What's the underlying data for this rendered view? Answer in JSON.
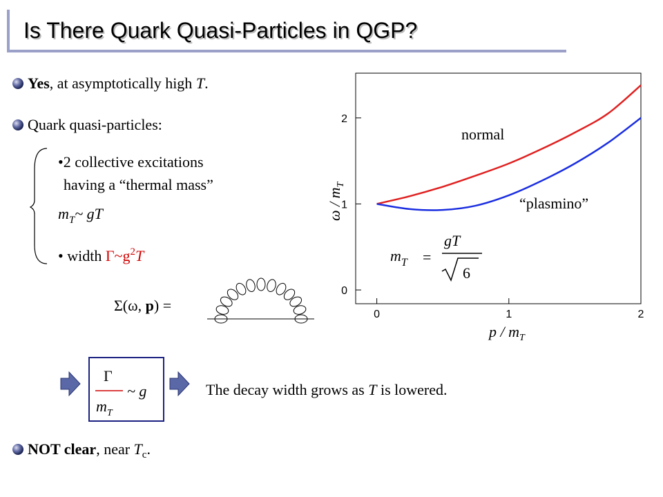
{
  "header": {
    "title": "Is There Quark Quasi-Particles in QGP?"
  },
  "bullets": [
    {
      "bold": "Yes",
      "text": ", at asymptotically high ",
      "italic": "T",
      "end": "."
    },
    {
      "text": "Quark quasi-particles:"
    },
    {
      "bold": "NOT clear",
      "text": ", near ",
      "italic": "T",
      "sub": "c",
      "end": "."
    }
  ],
  "sub_items": [
    {
      "line1": "•2 collective excitations",
      "line2": "having a “thermal mass”",
      "m": "m",
      "sub": "T",
      "rest": "~ gT"
    },
    {
      "text": "• width ",
      "gamma": "Γ~g",
      "sup": "2",
      "end": "T"
    }
  ],
  "self_energy": {
    "left": "Σ(ω, ",
    "bold": "p",
    "right": ") ="
  },
  "ratio": {
    "num": "Γ",
    "den": "m",
    "den_sub": "T",
    "rel": "~ g"
  },
  "conclusion": {
    "text": "The decay width grows as ",
    "italic": "T",
    "end": " is lowered."
  },
  "chart_data": {
    "type": "line",
    "xlabel": "p / m",
    "xlabel_sub": "T",
    "ylabel": "ω / m",
    "ylabel_sub": "T",
    "formula": {
      "lhs": "m",
      "lhs_sub": "T",
      "eq": "=",
      "num": "gT",
      "den": "6"
    },
    "x": [
      0,
      0.25,
      0.5,
      0.75,
      1,
      1.25,
      1.5,
      1.75,
      2
    ],
    "series": [
      {
        "name": "normal",
        "color": "#e02020",
        "values": [
          1,
          1.09,
          1.2,
          1.33,
          1.47,
          1.64,
          1.83,
          2.05,
          2.38
        ]
      },
      {
        "name": "“plasmino”",
        "color": "#1a2ee0",
        "values": [
          1,
          0.94,
          0.93,
          0.98,
          1.1,
          1.27,
          1.47,
          1.71,
          2.0
        ]
      }
    ],
    "xlim": [
      -0.16,
      2
    ],
    "ylim": [
      -0.16,
      2.52
    ],
    "xticks": [
      0,
      1,
      2
    ],
    "yticks": [
      0,
      1,
      2
    ]
  }
}
